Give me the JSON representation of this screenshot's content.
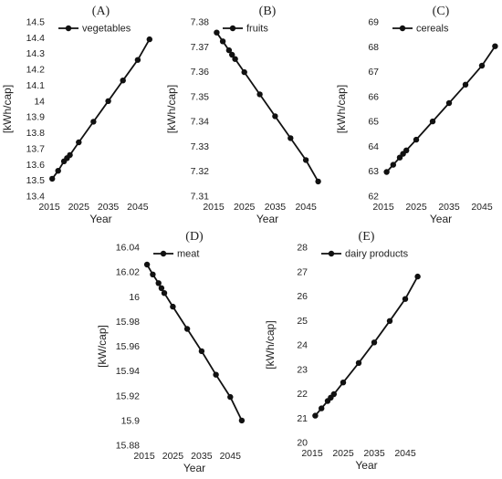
{
  "chart_data": [
    {
      "type": "line",
      "panel": "(A)",
      "xlabel": "Year",
      "ylabel": "[kWh/cap]",
      "xlim": [
        2015,
        2050
      ],
      "x_ticks": [
        2015,
        2025,
        2035,
        2045
      ],
      "ylim": [
        13.4,
        14.5
      ],
      "y_ticks": [
        13.4,
        13.5,
        13.6,
        13.7,
        13.8,
        13.9,
        14.0,
        14.1,
        14.2,
        14.3,
        14.4,
        14.5
      ],
      "y_tick_labels": [
        "13.4",
        "13.5",
        "13.6",
        "13.7",
        "13.8",
        "13.9",
        "14",
        "14.1",
        "14.2",
        "14.3",
        "14.4",
        "14.5"
      ],
      "legend_position": "top-left",
      "series": [
        {
          "name": "vegetables",
          "x": [
            2016,
            2018,
            2020,
            2021,
            2022,
            2025,
            2030,
            2035,
            2040,
            2045,
            2049
          ],
          "y": [
            13.51,
            13.56,
            13.62,
            13.64,
            13.66,
            13.74,
            13.87,
            14.0,
            14.13,
            14.26,
            14.39
          ]
        }
      ]
    },
    {
      "type": "line",
      "panel": "(B)",
      "xlabel": "Year",
      "ylabel": "[kWh/cap]",
      "xlim": [
        2015,
        2050
      ],
      "x_ticks": [
        2015,
        2025,
        2035,
        2045
      ],
      "ylim": [
        7.31,
        7.38
      ],
      "y_ticks": [
        7.31,
        7.32,
        7.33,
        7.34,
        7.35,
        7.36,
        7.37,
        7.38
      ],
      "y_tick_labels": [
        "7.31",
        "7.32",
        "7.33",
        "7.34",
        "7.35",
        "7.36",
        "7.37",
        "7.38"
      ],
      "legend_position": "top-left",
      "series": [
        {
          "name": "fruits",
          "x": [
            2016,
            2018,
            2020,
            2021,
            2022,
            2025,
            2030,
            2035,
            2040,
            2045,
            2049
          ],
          "y": [
            7.3757,
            7.3722,
            7.3686,
            7.3668,
            7.3651,
            7.3598,
            7.3509,
            7.3421,
            7.3333,
            7.3245,
            7.3159
          ]
        }
      ]
    },
    {
      "type": "line",
      "panel": "(C)",
      "xlabel": "Year",
      "ylabel": "[kWh/cap]",
      "xlim": [
        2015,
        2050
      ],
      "x_ticks": [
        2015,
        2025,
        2035,
        2045
      ],
      "ylim": [
        62,
        69
      ],
      "y_ticks": [
        62,
        63,
        64,
        65,
        66,
        67,
        68,
        69
      ],
      "y_tick_labels": [
        "62",
        "63",
        "64",
        "65",
        "66",
        "67",
        "68",
        "69"
      ],
      "legend_position": "top-left",
      "series": [
        {
          "name": "cereals",
          "x": [
            2016,
            2018,
            2020,
            2021,
            2022,
            2025,
            2030,
            2035,
            2040,
            2045,
            2049
          ],
          "y": [
            62.97,
            63.26,
            63.55,
            63.7,
            63.84,
            64.27,
            65.0,
            65.74,
            66.48,
            67.24,
            68.02
          ]
        }
      ]
    },
    {
      "type": "line",
      "panel": "(D)",
      "xlabel": "Year",
      "ylabel": "[kW/cap]",
      "xlim": [
        2015,
        2050
      ],
      "x_ticks": [
        2015,
        2025,
        2035,
        2045
      ],
      "ylim": [
        15.88,
        16.04
      ],
      "y_ticks": [
        15.88,
        15.9,
        15.92,
        15.94,
        15.96,
        15.98,
        16.0,
        16.02,
        16.04
      ],
      "y_tick_labels": [
        "15.88",
        "15.9",
        "15.92",
        "15.94",
        "15.96",
        "15.98",
        "16",
        "16.02",
        "16.04"
      ],
      "legend_position": "top-left",
      "series": [
        {
          "name": "meat",
          "x": [
            2016,
            2018,
            2020,
            2021,
            2022,
            2025,
            2030,
            2035,
            2040,
            2045,
            2049
          ],
          "y": [
            16.026,
            16.018,
            16.011,
            16.007,
            16.003,
            15.992,
            15.974,
            15.956,
            15.937,
            15.919,
            15.9
          ]
        }
      ]
    },
    {
      "type": "line",
      "panel": "(E)",
      "xlabel": "Year",
      "ylabel": "[kWh/cap]",
      "xlim": [
        2015,
        2050
      ],
      "x_ticks": [
        2015,
        2025,
        2035,
        2045
      ],
      "ylim": [
        20,
        28
      ],
      "y_ticks": [
        20,
        21,
        22,
        23,
        24,
        25,
        26,
        27,
        28
      ],
      "y_tick_labels": [
        "20",
        "21",
        "22",
        "23",
        "24",
        "25",
        "26",
        "27",
        "28"
      ],
      "legend_position": "top-left",
      "series": [
        {
          "name": "dairy products",
          "x": [
            2016,
            2018,
            2020,
            2021,
            2022,
            2025,
            2030,
            2035,
            2040,
            2045,
            2049
          ],
          "y": [
            21.1,
            21.4,
            21.7,
            21.84,
            21.98,
            22.46,
            23.26,
            24.1,
            24.98,
            25.88,
            26.8
          ]
        }
      ]
    }
  ],
  "colors": {
    "line": "#111111",
    "marker": "#111111",
    "text": "#222222",
    "background": "#ffffff"
  }
}
